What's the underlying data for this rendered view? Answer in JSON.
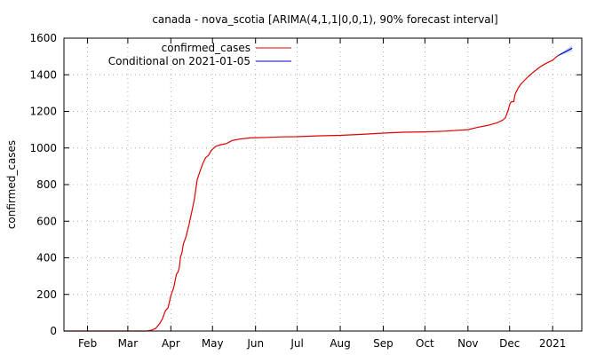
{
  "chart_data": {
    "type": "line",
    "title": "canada - nova_scotia [ARIMA(4,1,1|0,0,1), 90% forecast interval]",
    "xlabel": "",
    "ylabel": "confirmed_cases",
    "ylim": [
      0,
      1600
    ],
    "xlim": [
      "2020-01-15",
      "2021-01-22"
    ],
    "y_ticks": [
      0,
      200,
      400,
      600,
      800,
      1000,
      1200,
      1400,
      1600
    ],
    "x_ticks": [
      {
        "label": "Feb",
        "date": "2020-02-01"
      },
      {
        "label": "Mar",
        "date": "2020-03-01"
      },
      {
        "label": "Apr",
        "date": "2020-04-01"
      },
      {
        "label": "May",
        "date": "2020-05-01"
      },
      {
        "label": "Jun",
        "date": "2020-06-01"
      },
      {
        "label": "Jul",
        "date": "2020-07-01"
      },
      {
        "label": "Aug",
        "date": "2020-08-01"
      },
      {
        "label": "Sep",
        "date": "2020-09-01"
      },
      {
        "label": "Oct",
        "date": "2020-10-01"
      },
      {
        "label": "Nov",
        "date": "2020-11-01"
      },
      {
        "label": "Dec",
        "date": "2020-12-01"
      },
      {
        "label": "2021",
        "date": "2021-01-01"
      }
    ],
    "grid": true,
    "legend_position": "top-left",
    "series": [
      {
        "name": "confirmed_cases",
        "color": "#e00000",
        "points": [
          [
            "2020-03-15",
            0
          ],
          [
            "2020-03-18",
            5
          ],
          [
            "2020-03-21",
            14
          ],
          [
            "2020-03-24",
            41
          ],
          [
            "2020-03-26",
            68
          ],
          [
            "2020-03-28",
            110
          ],
          [
            "2020-03-30",
            127
          ],
          [
            "2020-04-01",
            193
          ],
          [
            "2020-04-03",
            236
          ],
          [
            "2020-04-05",
            310
          ],
          [
            "2020-04-06",
            321
          ],
          [
            "2020-04-07",
            342
          ],
          [
            "2020-04-08",
            407
          ],
          [
            "2020-04-09",
            428
          ],
          [
            "2020-04-10",
            474
          ],
          [
            "2020-04-12",
            517
          ],
          [
            "2020-04-14",
            579
          ],
          [
            "2020-04-16",
            649
          ],
          [
            "2020-04-18",
            721
          ],
          [
            "2020-04-20",
            827
          ],
          [
            "2020-04-22",
            873
          ],
          [
            "2020-04-24",
            915
          ],
          [
            "2020-04-26",
            947
          ],
          [
            "2020-04-28",
            959
          ],
          [
            "2020-04-30",
            985
          ],
          [
            "2020-05-03",
            1008
          ],
          [
            "2020-05-07",
            1018
          ],
          [
            "2020-05-11",
            1024
          ],
          [
            "2020-05-15",
            1040
          ],
          [
            "2020-05-20",
            1048
          ],
          [
            "2020-05-28",
            1055
          ],
          [
            "2020-06-10",
            1058
          ],
          [
            "2020-06-20",
            1061
          ],
          [
            "2020-07-01",
            1062
          ],
          [
            "2020-07-15",
            1066
          ],
          [
            "2020-08-01",
            1069
          ],
          [
            "2020-08-15",
            1074
          ],
          [
            "2020-09-01",
            1081
          ],
          [
            "2020-09-15",
            1086
          ],
          [
            "2020-10-01",
            1088
          ],
          [
            "2020-10-15",
            1092
          ],
          [
            "2020-11-01",
            1100
          ],
          [
            "2020-11-08",
            1113
          ],
          [
            "2020-11-15",
            1123
          ],
          [
            "2020-11-22",
            1138
          ],
          [
            "2020-11-26",
            1152
          ],
          [
            "2020-11-28",
            1165
          ],
          [
            "2020-11-30",
            1208
          ],
          [
            "2020-12-01",
            1236
          ],
          [
            "2020-12-02",
            1252
          ],
          [
            "2020-12-04",
            1254
          ],
          [
            "2020-12-05",
            1295
          ],
          [
            "2020-12-07",
            1325
          ],
          [
            "2020-12-09",
            1348
          ],
          [
            "2020-12-12",
            1372
          ],
          [
            "2020-12-15",
            1394
          ],
          [
            "2020-12-18",
            1414
          ],
          [
            "2020-12-21",
            1432
          ],
          [
            "2020-12-24",
            1448
          ],
          [
            "2020-12-28",
            1465
          ],
          [
            "2021-01-01",
            1480
          ],
          [
            "2021-01-03",
            1494
          ],
          [
            "2021-01-05",
            1505
          ]
        ]
      },
      {
        "name": "Conditional on 2021-01-05",
        "color": "#0000cc",
        "band_color": "#c8d4f4",
        "points": [
          [
            "2021-01-05",
            1505
          ],
          [
            "2021-01-07",
            1513
          ],
          [
            "2021-01-09",
            1521
          ],
          [
            "2021-01-11",
            1529
          ],
          [
            "2021-01-13",
            1537
          ],
          [
            "2021-01-15",
            1545
          ]
        ],
        "interval_low": [
          1505,
          1508,
          1513,
          1518,
          1523,
          1529
        ],
        "interval_high": [
          1505,
          1518,
          1529,
          1540,
          1551,
          1562
        ]
      }
    ]
  }
}
